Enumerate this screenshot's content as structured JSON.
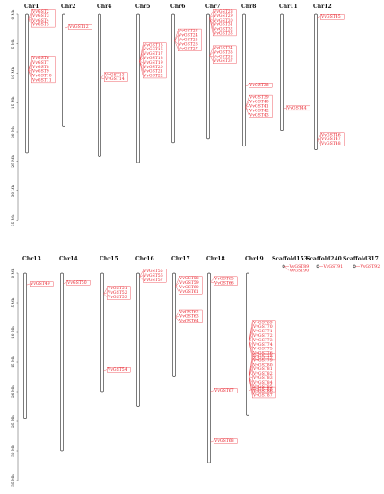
{
  "figure": {
    "panels": [
      {
        "id": "top",
        "axis_ticks": [
          "0 Mb",
          "5 Mb",
          "10 Mb",
          "15 Mb",
          "20 Mb",
          "25 Mb",
          "30 Mb",
          "35 Mb"
        ],
        "chromosomes": [
          {
            "name": "Chr1",
            "length": 23.5,
            "groups": [
              {
                "pos": 0.8,
                "genes": [
                  "VvGST2",
                  "VvGST3",
                  "VvGST4",
                  "VvGST5"
                ]
              },
              {
                "pos": 9.5,
                "genes": [
                  "VvGST6",
                  "VvGST7",
                  "VvGST8",
                  "VvGST9",
                  "VvGST10",
                  "VvGST11"
                ]
              }
            ]
          },
          {
            "name": "Chr2",
            "length": 19.0,
            "groups": [
              {
                "pos": 2.3,
                "genes": [
                  "VvGST12"
                ]
              }
            ]
          },
          {
            "name": "Chr4",
            "length": 24.2,
            "groups": [
              {
                "pos": 10.8,
                "genes": [
                  "VvGST13",
                  "VvGST14"
                ]
              }
            ]
          },
          {
            "name": "Chr5",
            "length": 25.2,
            "groups": [
              {
                "pos": 8.0,
                "genes": [
                  "VvGST15",
                  "VvGST16",
                  "VvGST17",
                  "VvGST18",
                  "VvGST19",
                  "VvGST20",
                  "VvGST21",
                  "VvGST22"
                ]
              }
            ]
          },
          {
            "name": "Chr6",
            "length": 21.8,
            "groups": [
              {
                "pos": 4.5,
                "genes": [
                  "VvGST23",
                  "VvGST24",
                  "VvGST25",
                  "VvGST26",
                  "VvGST27"
                ]
              }
            ]
          },
          {
            "name": "Chr7",
            "length": 21.2,
            "groups": [
              {
                "pos": 0.6,
                "genes": [
                  "VvGST28",
                  "VvGST29",
                  "VvGST30",
                  "VvGST31",
                  "VvGST32",
                  "VvGST33"
                ]
              },
              {
                "pos": 7.0,
                "genes": [
                  "VvGST34",
                  "VvGST35",
                  "VvGST36",
                  "VvGST37"
                ]
              }
            ]
          },
          {
            "name": "Chr8",
            "length": 22.4,
            "groups": [
              {
                "pos": 12.2,
                "genes": [
                  "VvGST38"
                ]
              },
              {
                "pos": 15.8,
                "genes": [
                  "VvGST39",
                  "VvGST40",
                  "VvGST41",
                  "VvGST42",
                  "VvGST43"
                ]
              }
            ]
          },
          {
            "name": "Chr11",
            "length": 19.8,
            "groups": [
              {
                "pos": 16.1,
                "genes": [
                  "VvGST44"
                ]
              }
            ]
          },
          {
            "name": "Chr12",
            "length": 23.0,
            "groups": [
              {
                "pos": 0.6,
                "genes": [
                  "VvGST45"
                ]
              },
              {
                "pos": 21.4,
                "genes": [
                  "VvGST46",
                  "VvGST47",
                  "VvGST48"
                ]
              }
            ]
          }
        ]
      },
      {
        "id": "bottom",
        "axis_ticks": [
          "0 Mb",
          "5 Mb",
          "10 Mb",
          "15 Mb",
          "20 Mb",
          "25 Mb",
          "30 Mb",
          "35 Mb"
        ],
        "chromosomes": [
          {
            "name": "Chr13",
            "length": 24.5,
            "groups": [
              {
                "pos": 2.0,
                "genes": [
                  "VvGST49"
                ]
              }
            ]
          },
          {
            "name": "Chr14",
            "length": 30.0,
            "groups": [
              {
                "pos": 1.8,
                "genes": [
                  "VvGST50"
                ]
              }
            ]
          },
          {
            "name": "Chr15",
            "length": 20.0,
            "groups": [
              {
                "pos": 3.5,
                "genes": [
                  "VvGST51",
                  "VvGST52",
                  "VvGST53"
                ]
              },
              {
                "pos": 16.5,
                "genes": [
                  "VvGST54"
                ]
              }
            ]
          },
          {
            "name": "Chr16",
            "length": 22.5,
            "groups": [
              {
                "pos": 0.6,
                "genes": [
                  "VvGST55",
                  "VvGST56",
                  "VvGST57"
                ]
              }
            ]
          },
          {
            "name": "Chr17",
            "length": 17.5,
            "groups": [
              {
                "pos": 2.2,
                "genes": [
                  "VvGST58",
                  "VvGST59",
                  "VvGST60",
                  "VvGST61"
                ]
              },
              {
                "pos": 7.5,
                "genes": [
                  "VvGST62",
                  "VvGST63",
                  "VvGST64"
                ]
              }
            ]
          },
          {
            "name": "Chr18",
            "length": 32.0,
            "groups": [
              {
                "pos": 1.5,
                "genes": [
                  "VvGST65",
                  "VvGST66"
                ]
              },
              {
                "pos": 20.0,
                "genes": [
                  "VvGST67"
                ]
              },
              {
                "pos": 28.5,
                "genes": [
                  "VvGST68"
                ]
              }
            ]
          },
          {
            "name": "Chr19",
            "length": 24.0,
            "groups": [
              {
                "pos": 11.5,
                "genes": [
                  "VvGST69",
                  "VvGST70",
                  "VvGST71",
                  "VvGST72",
                  "VvGST73",
                  "VvGST74",
                  "VvGST75",
                  "VvGST76",
                  "VvGST77"
                ]
              },
              {
                "pos": 17.5,
                "genes": [
                  "VvGST78",
                  "VvGST79",
                  "VvGST80",
                  "VvGST81",
                  "VvGST82",
                  "VvGST83",
                  "VvGST84",
                  "VvGST85",
                  "VvGST86",
                  "VvGST87"
                ]
              },
              {
                "pos": 19.8,
                "genes": [
                  "VvGST88"
                ]
              }
            ]
          }
        ],
        "scaffolds": [
          {
            "name": "Scaffold153",
            "genes": [
              "VvGST89",
              "VvGST90"
            ]
          },
          {
            "name": "Scaffold240",
            "genes": [
              "VvGST91"
            ]
          },
          {
            "name": "Scaffold317",
            "genes": [
              "VvGST92"
            ]
          }
        ]
      }
    ],
    "colors": {
      "gene_label": "#e8202a",
      "chromosome_stroke": "#444444",
      "axis": "#222222"
    }
  }
}
